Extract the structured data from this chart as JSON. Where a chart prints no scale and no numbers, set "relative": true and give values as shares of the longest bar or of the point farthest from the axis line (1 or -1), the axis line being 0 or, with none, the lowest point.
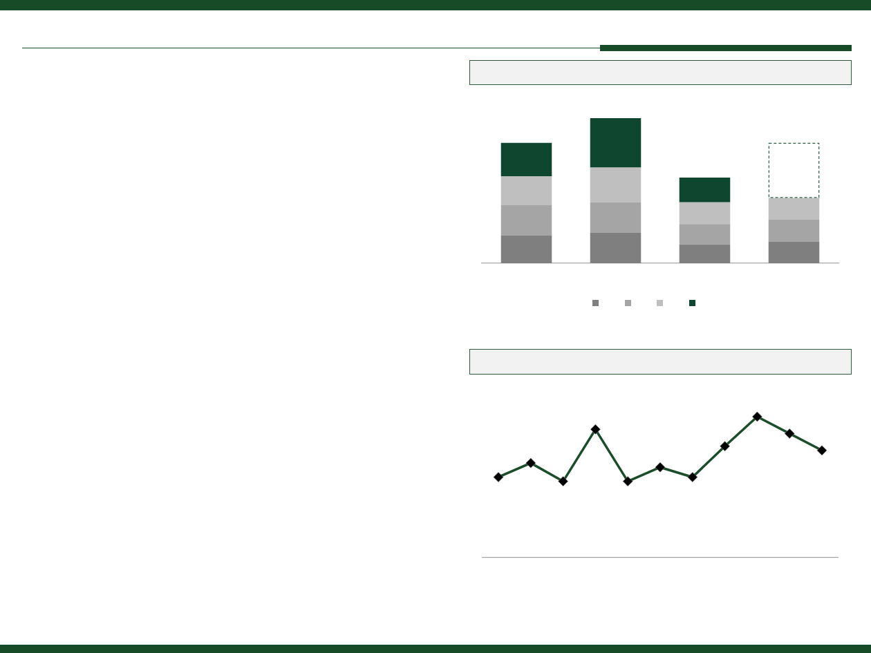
{
  "chart_data": [
    {
      "type": "bar",
      "stacked": true,
      "relative": true,
      "categories": [
        null,
        null,
        null,
        null
      ],
      "series": [
        {
          "color": "#7f7f7f",
          "values": [
            0.19,
            0.21,
            0.13,
            0.15
          ]
        },
        {
          "color": "#a5a5a5",
          "values": [
            0.21,
            0.21,
            0.14,
            0.15
          ]
        },
        {
          "color": "#bfbfbf",
          "values": [
            0.2,
            0.24,
            0.15,
            0.15
          ]
        },
        {
          "color": "#0e4630",
          "values": [
            0.23,
            0.34,
            0.17,
            null
          ]
        },
        {
          "color": "#2a5e40",
          "line_style": "dashed",
          "values": [
            null,
            null,
            null,
            0.38
          ]
        }
      ]
    },
    {
      "type": "line",
      "relative": true,
      "categories": [
        null,
        null,
        null,
        null,
        null,
        null,
        null,
        null,
        null,
        null,
        null
      ],
      "series": [
        {
          "color": "#1b4d2b",
          "values": [
            0.57,
            0.67,
            0.54,
            0.91,
            0.54,
            0.64,
            0.57,
            0.79,
            1,
            0.88,
            0.76
          ]
        }
      ],
      "marker": "diamond",
      "line_style": "solid"
    }
  ]
}
